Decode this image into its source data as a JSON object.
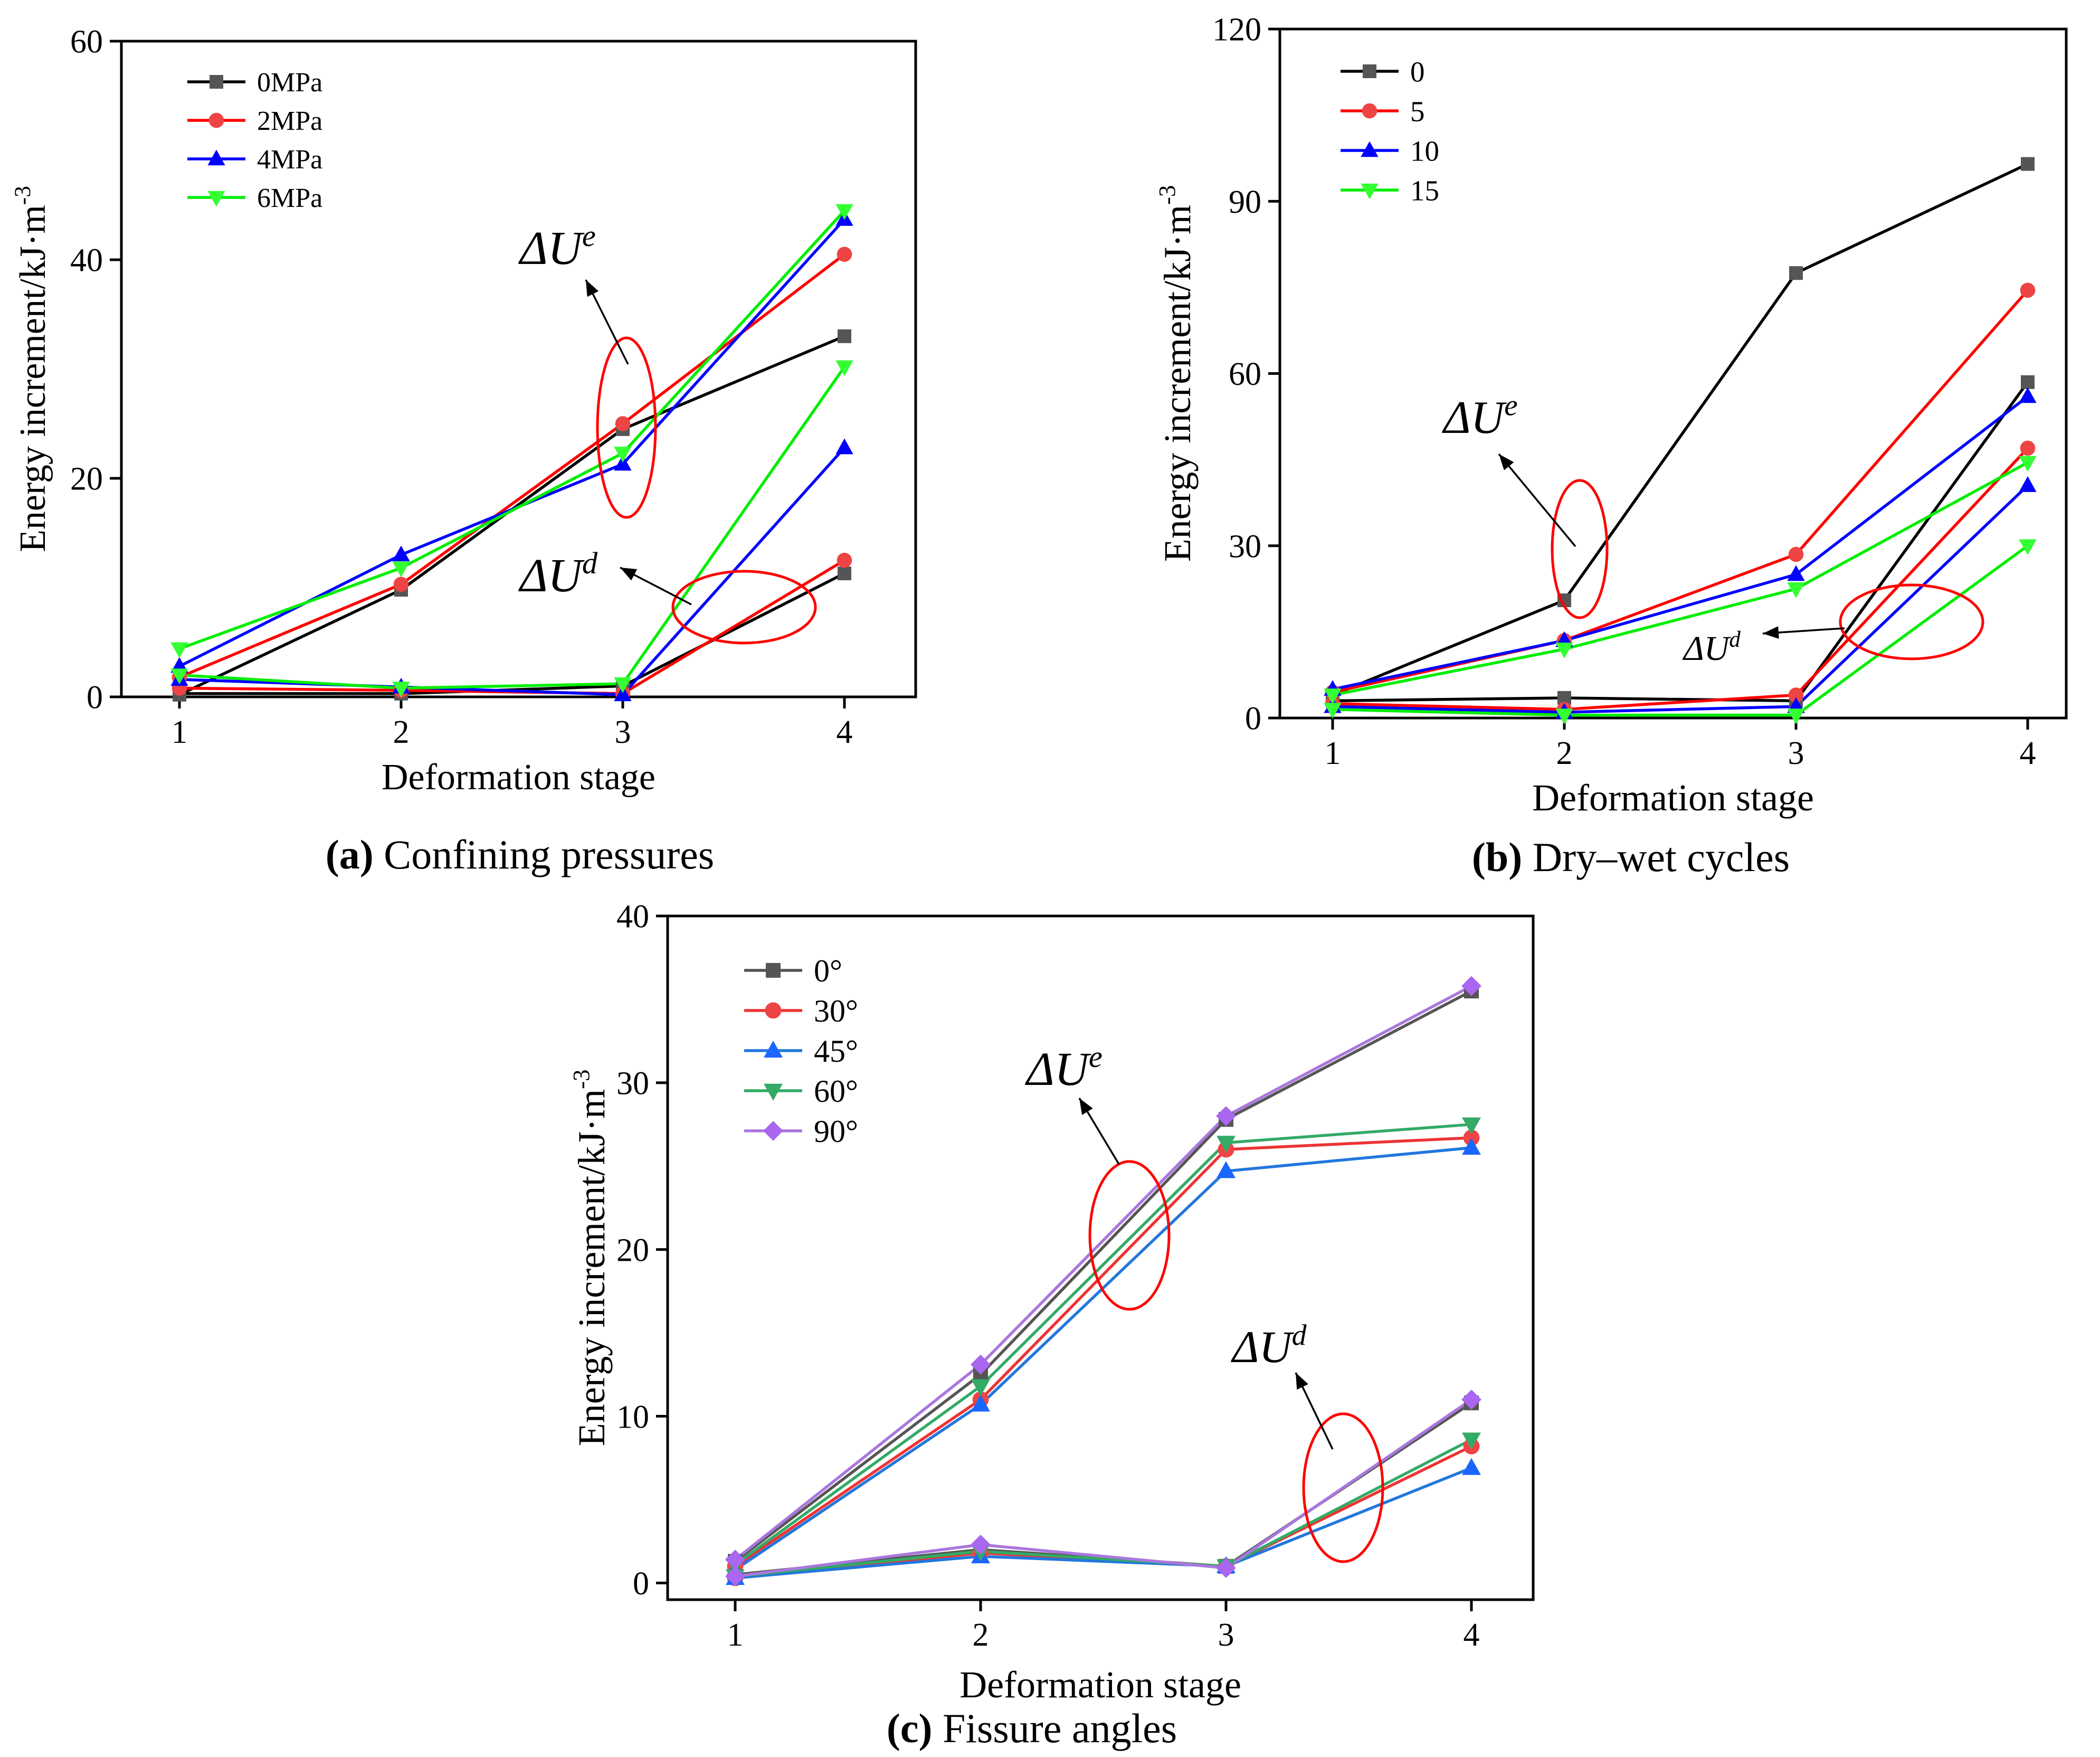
{
  "chart_data": [
    {
      "type": "line",
      "caption_label": "(a)",
      "caption_text": " Confining pressures",
      "xlabel": "Deformation stage",
      "ylabel": "Energy increment/kJ·m",
      "ylabel_sup": "-3",
      "ylim": [
        0,
        60
      ],
      "yticks": [
        0,
        20,
        40,
        60
      ],
      "categories": [
        1,
        2,
        3,
        4
      ],
      "legend_position": "top-left",
      "annotations": {
        "elastic": "ΔU",
        "elastic_sup": "e",
        "dissipated": "ΔU",
        "dissipated_sup": "d"
      },
      "series": [
        {
          "name": "0MPa",
          "color": "#000000",
          "marker_color": "#555555",
          "marker": "square",
          "elastic": [
            0.2,
            9.8,
            24.5,
            33
          ],
          "dissipated": [
            0.3,
            0.3,
            1.0,
            11.3
          ]
        },
        {
          "name": "2MPa",
          "color": "#ff0000",
          "marker_color": "#ee4444",
          "marker": "circle",
          "elastic": [
            1.8,
            10.3,
            25.0,
            40.5
          ],
          "dissipated": [
            0.8,
            0.6,
            0.3,
            12.5
          ]
        },
        {
          "name": "4MPa",
          "color": "#0000ff",
          "marker_color": "#0000ff",
          "marker": "triangle-up",
          "elastic": [
            2.8,
            13.0,
            21.3,
            43.7
          ],
          "dissipated": [
            1.6,
            0.9,
            0.2,
            22.8
          ]
        },
        {
          "name": "6MPa",
          "color": "#00ee00",
          "marker_color": "#33ff33",
          "marker": "triangle-down",
          "elastic": [
            4.4,
            11.8,
            22.3,
            44.5
          ],
          "dissipated": [
            2.0,
            0.8,
            1.2,
            30.2
          ]
        }
      ]
    },
    {
      "type": "line",
      "caption_label": "(b)",
      "caption_text": " Dry–wet cycles",
      "xlabel": "Deformation stage",
      "ylabel": "Energy increment/kJ·m",
      "ylabel_sup": "-3",
      "ylim": [
        0,
        120
      ],
      "yticks": [
        0,
        30,
        60,
        90,
        120
      ],
      "categories": [
        1,
        2,
        3,
        4
      ],
      "legend_position": "top-left",
      "annotations": {
        "elastic": "ΔU",
        "elastic_sup": "e",
        "dissipated": "ΔU",
        "dissipated_sup": "d"
      },
      "series": [
        {
          "name": "0",
          "color": "#000000",
          "marker_color": "#555555",
          "marker": "square",
          "elastic": [
            4.0,
            20.5,
            77.5,
            96.5
          ],
          "dissipated": [
            3.0,
            3.5,
            3.0,
            58.5
          ]
        },
        {
          "name": "5",
          "color": "#ff0000",
          "marker_color": "#ee4444",
          "marker": "circle",
          "elastic": [
            4.5,
            13.5,
            28.5,
            74.5
          ],
          "dissipated": [
            2.5,
            1.5,
            4.0,
            47.0
          ]
        },
        {
          "name": "10",
          "color": "#0000ff",
          "marker_color": "#0000ff",
          "marker": "triangle-up",
          "elastic": [
            5.0,
            13.5,
            25.0,
            56.0
          ],
          "dissipated": [
            2.0,
            1.0,
            2.0,
            40.5
          ]
        },
        {
          "name": "15",
          "color": "#00ee00",
          "marker_color": "#33ff33",
          "marker": "triangle-down",
          "elastic": [
            4.0,
            12.0,
            22.5,
            44.5
          ],
          "dissipated": [
            1.5,
            0.5,
            0.5,
            30.0
          ]
        }
      ]
    },
    {
      "type": "line",
      "caption_label": "(c)",
      "caption_text": " Fissure angles",
      "xlabel": "Deformation stage",
      "ylabel": "Energy increment/kJ·m",
      "ylabel_sup": "-3",
      "ylim": [
        -1,
        40
      ],
      "yticks": [
        0,
        10,
        20,
        30,
        40
      ],
      "categories": [
        1,
        2,
        3,
        4
      ],
      "legend_position": "top-left",
      "annotations": {
        "elastic": "ΔU",
        "elastic_sup": "e",
        "dissipated": "ΔU",
        "dissipated_sup": "d"
      },
      "series": [
        {
          "name": "0°",
          "color": "#555555",
          "marker_color": "#555555",
          "marker": "square",
          "elastic": [
            1.3,
            12.5,
            27.8,
            35.5
          ],
          "dissipated": [
            0.5,
            2.0,
            1.0,
            10.8
          ]
        },
        {
          "name": "30°",
          "color": "#ee3333",
          "marker_color": "#ee4444",
          "marker": "circle",
          "elastic": [
            1.0,
            11.0,
            26.0,
            26.7
          ],
          "dissipated": [
            0.3,
            1.8,
            1.0,
            8.2
          ]
        },
        {
          "name": "45°",
          "color": "#2277dd",
          "marker_color": "#1a66ff",
          "marker": "triangle-up",
          "elastic": [
            0.8,
            10.7,
            24.7,
            26.1
          ],
          "dissipated": [
            0.3,
            1.6,
            1.0,
            6.9
          ]
        },
        {
          "name": "60°",
          "color": "#33aa66",
          "marker_color": "#33aa66",
          "marker": "triangle-down",
          "elastic": [
            1.1,
            11.8,
            26.4,
            27.5
          ],
          "dissipated": [
            0.4,
            1.9,
            1.0,
            8.6
          ]
        },
        {
          "name": "90°",
          "color": "#aa77dd",
          "marker_color": "#aa66ee",
          "marker": "diamond",
          "elastic": [
            1.4,
            13.1,
            28.0,
            35.8
          ],
          "dissipated": [
            0.4,
            2.3,
            0.9,
            11.0
          ]
        }
      ]
    }
  ]
}
